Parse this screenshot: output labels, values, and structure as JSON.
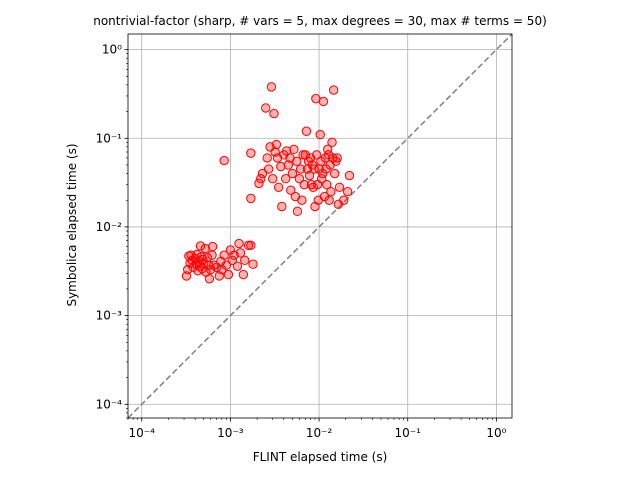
{
  "chart_data": {
    "type": "scatter",
    "title": "nontrivial-factor (sharp, # vars = 5, max degrees = 30, max # terms = 50)",
    "xlabel": "FLINT elapsed time (s)",
    "ylabel": "Symbolica elapsed time (s)",
    "xscale": "log",
    "yscale": "log",
    "xlim": [
      7e-05,
      1.5
    ],
    "ylim": [
      7e-05,
      1.5
    ],
    "grid": true,
    "reference_line": {
      "style": "dashed",
      "color": "#808080",
      "relation": "y = x"
    },
    "tick_values": [
      0.0001,
      0.001,
      0.01,
      0.1,
      1
    ],
    "x_tick_labels": [
      "10⁻⁴",
      "10⁻³",
      "10⁻²",
      "10⁻¹",
      "10⁰"
    ],
    "y_tick_labels": [
      "10⁻⁴",
      "10⁻³",
      "10⁻²",
      "10⁻¹",
      "10⁰"
    ],
    "marker_color": "#ff0000",
    "points": [
      [
        0.00032,
        0.0028
      ],
      [
        0.00033,
        0.0033
      ],
      [
        0.00034,
        0.0047
      ],
      [
        0.00035,
        0.0039
      ],
      [
        0.00036,
        0.0048
      ],
      [
        0.00037,
        0.0042
      ],
      [
        0.00038,
        0.0035
      ],
      [
        0.0004,
        0.0044
      ],
      [
        0.00041,
        0.0038
      ],
      [
        0.00042,
        0.0049
      ],
      [
        0.00043,
        0.0032
      ],
      [
        0.00044,
        0.0041
      ],
      [
        0.00045,
        0.0036
      ],
      [
        0.00046,
        0.0061
      ],
      [
        0.00047,
        0.0046
      ],
      [
        0.00048,
        0.0034
      ],
      [
        0.00049,
        0.0043
      ],
      [
        0.0005,
        0.0039
      ],
      [
        0.00052,
        0.0057
      ],
      [
        0.00053,
        0.0031
      ],
      [
        0.00055,
        0.0045
      ],
      [
        0.00057,
        0.0037
      ],
      [
        0.00058,
        0.0026
      ],
      [
        0.0006,
        0.0033
      ],
      [
        0.00062,
        0.0048
      ],
      [
        0.00063,
        0.006
      ],
      [
        0.00065,
        0.0037
      ],
      [
        0.0007,
        0.0035
      ],
      [
        0.00075,
        0.0028
      ],
      [
        0.00078,
        0.0041
      ],
      [
        0.0008,
        0.0033
      ],
      [
        0.00085,
        0.0048
      ],
      [
        0.0009,
        0.0037
      ],
      [
        0.00095,
        0.0029
      ],
      [
        0.001,
        0.0055
      ],
      [
        0.00105,
        0.0042
      ],
      [
        0.0011,
        0.0048
      ],
      [
        0.0012,
        0.0036
      ],
      [
        0.00125,
        0.0065
      ],
      [
        0.0013,
        0.0051
      ],
      [
        0.0014,
        0.0029
      ],
      [
        0.00145,
        0.0042
      ],
      [
        0.0016,
        0.0062
      ],
      [
        0.0017,
        0.0062
      ],
      [
        0.0018,
        0.0038
      ],
      [
        0.00085,
        0.056
      ],
      [
        0.0017,
        0.068
      ],
      [
        0.0017,
        0.021
      ],
      [
        0.0021,
        0.031
      ],
      [
        0.0022,
        0.035
      ],
      [
        0.0023,
        0.04
      ],
      [
        0.0025,
        0.22
      ],
      [
        0.0026,
        0.06
      ],
      [
        0.0027,
        0.045
      ],
      [
        0.0028,
        0.08
      ],
      [
        0.0029,
        0.38
      ],
      [
        0.003,
        0.035
      ],
      [
        0.0031,
        0.19
      ],
      [
        0.0032,
        0.07
      ],
      [
        0.0033,
        0.085
      ],
      [
        0.0034,
        0.06
      ],
      [
        0.0035,
        0.028
      ],
      [
        0.0037,
        0.048
      ],
      [
        0.0038,
        0.017
      ],
      [
        0.004,
        0.065
      ],
      [
        0.0042,
        0.035
      ],
      [
        0.0043,
        0.072
      ],
      [
        0.0045,
        0.05
      ],
      [
        0.0047,
        0.06
      ],
      [
        0.0048,
        0.026
      ],
      [
        0.005,
        0.04
      ],
      [
        0.0052,
        0.075
      ],
      [
        0.0054,
        0.022
      ],
      [
        0.0056,
        0.055
      ],
      [
        0.0057,
        0.015
      ],
      [
        0.006,
        0.035
      ],
      [
        0.0062,
        0.045
      ],
      [
        0.0064,
        0.02
      ],
      [
        0.0066,
        0.065
      ],
      [
        0.0068,
        0.03
      ],
      [
        0.007,
        0.065
      ],
      [
        0.0072,
        0.12
      ],
      [
        0.0074,
        0.045
      ],
      [
        0.0076,
        0.055
      ],
      [
        0.0078,
        0.038
      ],
      [
        0.008,
        0.06
      ],
      [
        0.0082,
        0.03
      ],
      [
        0.0084,
        0.05
      ],
      [
        0.0086,
        0.028
      ],
      [
        0.0088,
        0.045
      ],
      [
        0.009,
        0.017
      ],
      [
        0.0092,
        0.28
      ],
      [
        0.0094,
        0.065
      ],
      [
        0.0096,
        0.03
      ],
      [
        0.0098,
        0.02
      ],
      [
        0.01,
        0.045
      ],
      [
        0.0103,
        0.11
      ],
      [
        0.0105,
        0.055
      ],
      [
        0.0107,
        0.035
      ],
      [
        0.011,
        0.04
      ],
      [
        0.0112,
        0.26
      ],
      [
        0.0115,
        0.022
      ],
      [
        0.0118,
        0.06
      ],
      [
        0.012,
        0.045
      ],
      [
        0.0122,
        0.03
      ],
      [
        0.0125,
        0.075
      ],
      [
        0.0128,
        0.065
      ],
      [
        0.013,
        0.02
      ],
      [
        0.0133,
        0.05
      ],
      [
        0.0136,
        0.025
      ],
      [
        0.014,
        0.09
      ],
      [
        0.0143,
        0.06
      ],
      [
        0.0146,
        0.35
      ],
      [
        0.015,
        0.04
      ],
      [
        0.0155,
        0.055
      ],
      [
        0.016,
        0.06
      ],
      [
        0.0165,
        0.018
      ],
      [
        0.017,
        0.028
      ],
      [
        0.019,
        0.02
      ],
      [
        0.021,
        0.025
      ],
      [
        0.022,
        0.038
      ]
    ]
  }
}
